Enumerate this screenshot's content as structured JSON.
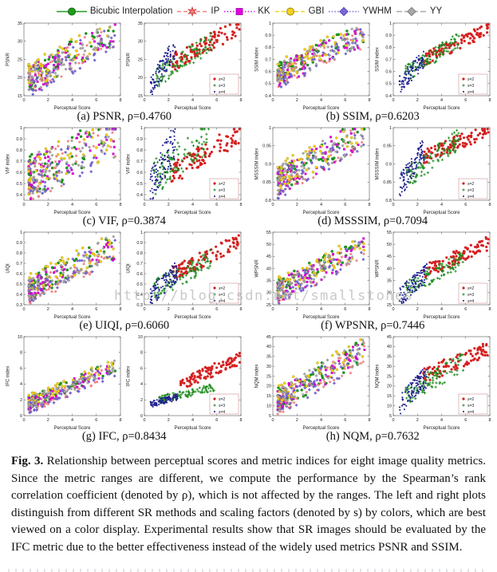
{
  "page": {
    "watermark": "http://blog.csdn.net/smallstones"
  },
  "legend": {
    "items": [
      {
        "name": "Bicubic Interpolation",
        "color": "#1e9c1e",
        "edge": "#0d6b0d",
        "marker": "circle",
        "line": "solid"
      },
      {
        "name": "IP",
        "color": "#f08080",
        "edge": "#d03030",
        "marker": "star",
        "line": "dashed"
      },
      {
        "name": "KK",
        "color": "#e000e0",
        "edge": "#a000a0",
        "marker": "square",
        "line": "dotted"
      },
      {
        "name": "GBI",
        "color": "#f2d022",
        "edge": "#a08800",
        "marker": "circle",
        "line": "dashed"
      },
      {
        "name": "YWHM",
        "color": "#7a6ad8",
        "edge": "#4838a8",
        "marker": "diamond",
        "line": "dotted"
      },
      {
        "name": "YY",
        "color": "#a8a8a8",
        "edge": "#707070",
        "marker": "diamond",
        "line": "dash"
      }
    ]
  },
  "scales": [
    {
      "label": "s=2",
      "color": "#d62020",
      "marker": "circle"
    },
    {
      "label": "s=3",
      "color": "#1e8c1e",
      "marker": "plus"
    },
    {
      "label": "s=4",
      "color": "#202090",
      "marker": "dot"
    }
  ],
  "method_offsets": [
    0.02,
    -0.03,
    0.0,
    0.05,
    -0.04,
    0.01
  ],
  "chart_data": [
    {
      "id": "a",
      "type": "scatter",
      "metric": "PSNR",
      "rho": 0.476,
      "caption": "(a) PSNR, ρ=0.4760",
      "xlabel": "Perceptual Score",
      "ylabel": "PSNR",
      "xlim": [
        0,
        8
      ],
      "xticks": [
        0,
        2,
        4,
        6,
        8
      ],
      "ylim": [
        15,
        35
      ],
      "yticks": [
        15,
        20,
        25,
        30,
        35
      ],
      "left": {
        "x": [
          0.4,
          7.6
        ],
        "f": [
          0.2,
          0.88
        ],
        "noise": 0.4,
        "skew": 1.7,
        "n": 55
      },
      "right": [
        {
          "label": "s=2",
          "x": [
            2.2,
            7.9
          ],
          "f": [
            0.45,
            0.95
          ],
          "noise": 0.25,
          "n": 100
        },
        {
          "label": "s=3",
          "x": [
            1.0,
            5.6
          ],
          "f": [
            0.25,
            0.75
          ],
          "noise": 0.28,
          "n": 100
        },
        {
          "label": "s=4",
          "x": [
            0.5,
            2.6
          ],
          "f": [
            0.12,
            0.68
          ],
          "noise": 0.3,
          "n": 100
        }
      ]
    },
    {
      "id": "b",
      "type": "scatter",
      "metric": "SSIM",
      "rho": 0.6203,
      "caption": "(b) SSIM, ρ=0.6203",
      "xlabel": "Perceptual Score",
      "ylabel": "SSIM index",
      "xlim": [
        0,
        8
      ],
      "xticks": [
        0,
        2,
        4,
        6,
        8
      ],
      "ylim": [
        0.4,
        1
      ],
      "yticks": [
        0.4,
        0.5,
        0.6,
        0.7,
        0.8,
        0.9,
        1
      ],
      "left": {
        "x": [
          0.4,
          7.6
        ],
        "f": [
          0.28,
          0.85
        ],
        "noise": 0.32,
        "skew": 1.7,
        "n": 55
      },
      "right": [
        {
          "label": "s=2",
          "x": [
            2.5,
            7.9
          ],
          "f": [
            0.5,
            0.92
          ],
          "noise": 0.18,
          "n": 100
        },
        {
          "label": "s=3",
          "x": [
            1.0,
            5.5
          ],
          "f": [
            0.3,
            0.78
          ],
          "noise": 0.22,
          "n": 100
        },
        {
          "label": "s=4",
          "x": [
            0.5,
            2.6
          ],
          "f": [
            0.15,
            0.52
          ],
          "noise": 0.25,
          "n": 100
        }
      ]
    },
    {
      "id": "c",
      "type": "scatter",
      "metric": "VIF",
      "rho": 0.3874,
      "caption": "(c) VIF, ρ=0.3874",
      "xlabel": "Perceptual Score",
      "ylabel": "VIF index",
      "xlim": [
        0,
        8
      ],
      "xticks": [
        0,
        2,
        4,
        6,
        8
      ],
      "ylim": [
        0.35,
        1
      ],
      "yticks": [
        0.4,
        0.5,
        0.6,
        0.7,
        0.8,
        0.9,
        1
      ],
      "left": {
        "x": [
          0.4,
          7.6
        ],
        "f": [
          0.3,
          0.88
        ],
        "noise": 0.6,
        "skew": 1.9,
        "n": 55
      },
      "right": [
        {
          "label": "s=2",
          "x": [
            2.2,
            7.9
          ],
          "f": [
            0.35,
            0.93
          ],
          "noise": 0.3,
          "n": 100
        },
        {
          "label": "s=3",
          "x": [
            0.8,
            5.4
          ],
          "f": [
            0.3,
            0.92
          ],
          "noise": 0.5,
          "n": 100
        },
        {
          "label": "s=4",
          "x": [
            0.5,
            2.6
          ],
          "f": [
            0.15,
            0.85
          ],
          "noise": 0.55,
          "n": 100
        }
      ]
    },
    {
      "id": "d",
      "type": "scatter",
      "metric": "MSSSIM",
      "rho": 0.7094,
      "caption": "(d) MSSSIM, ρ=0.7094",
      "xlabel": "Perceptual Score",
      "ylabel": "MSSSIM index",
      "xlim": [
        0,
        8
      ],
      "xticks": [
        0,
        2,
        4,
        6,
        8
      ],
      "ylim": [
        0.8,
        1
      ],
      "yticks": [
        0.8,
        0.85,
        0.9,
        0.95,
        1
      ],
      "left": {
        "x": [
          0.4,
          7.6
        ],
        "f": [
          0.25,
          0.95
        ],
        "noise": 0.4,
        "skew": 1.8,
        "n": 55
      },
      "right": [
        {
          "label": "s=2",
          "x": [
            2.5,
            7.9
          ],
          "f": [
            0.6,
            0.97
          ],
          "noise": 0.2,
          "n": 100
        },
        {
          "label": "s=3",
          "x": [
            1.0,
            5.5
          ],
          "f": [
            0.3,
            0.85
          ],
          "noise": 0.3,
          "n": 100
        },
        {
          "label": "s=4",
          "x": [
            0.5,
            2.6
          ],
          "f": [
            0.18,
            0.72
          ],
          "noise": 0.32,
          "n": 100
        }
      ]
    },
    {
      "id": "e",
      "type": "scatter",
      "metric": "UIQI",
      "rho": 0.606,
      "caption": "(e) UIQI, ρ=0.6060",
      "xlabel": "Perceptual Score",
      "ylabel": "UIQI",
      "xlim": [
        0,
        8
      ],
      "xticks": [
        0,
        2,
        4,
        6,
        8
      ],
      "ylim": [
        0.3,
        1
      ],
      "yticks": [
        0.3,
        0.4,
        0.5,
        0.6,
        0.7,
        0.8,
        0.9,
        1
      ],
      "left": {
        "x": [
          0.4,
          7.6
        ],
        "f": [
          0.2,
          0.8
        ],
        "noise": 0.35,
        "skew": 1.7,
        "n": 55
      },
      "right": [
        {
          "label": "s=2",
          "x": [
            2.3,
            7.9
          ],
          "f": [
            0.42,
            0.88
          ],
          "noise": 0.22,
          "n": 100
        },
        {
          "label": "s=3",
          "x": [
            0.8,
            5.5
          ],
          "f": [
            0.2,
            0.62
          ],
          "noise": 0.28,
          "n": 100
        },
        {
          "label": "s=4",
          "x": [
            0.5,
            2.8
          ],
          "f": [
            0.1,
            0.48
          ],
          "noise": 0.28,
          "n": 100
        }
      ]
    },
    {
      "id": "f",
      "type": "scatter",
      "metric": "WPSNR",
      "rho": 0.7446,
      "caption": "(f) WPSNR, ρ=0.7446",
      "xlabel": "Perceptual Score",
      "ylabel": "WPSNR",
      "xlim": [
        0,
        8
      ],
      "xticks": [
        0,
        2,
        4,
        6,
        8
      ],
      "ylim": [
        25,
        55
      ],
      "yticks": [
        25,
        30,
        35,
        40,
        45,
        50,
        55
      ],
      "left": {
        "x": [
          0.4,
          7.6
        ],
        "f": [
          0.18,
          0.8
        ],
        "noise": 0.3,
        "skew": 1.7,
        "n": 55
      },
      "right": [
        {
          "label": "s=2",
          "x": [
            2.5,
            7.9
          ],
          "f": [
            0.45,
            0.85
          ],
          "noise": 0.2,
          "n": 100
        },
        {
          "label": "s=3",
          "x": [
            1.0,
            5.8
          ],
          "f": [
            0.22,
            0.62
          ],
          "noise": 0.22,
          "n": 100
        },
        {
          "label": "s=4",
          "x": [
            0.5,
            2.8
          ],
          "f": [
            0.1,
            0.45
          ],
          "noise": 0.26,
          "n": 100
        }
      ]
    },
    {
      "id": "g",
      "type": "scatter",
      "metric": "IFC",
      "rho": 0.8434,
      "caption": "(g) IFC, ρ=0.8434",
      "xlabel": "Perceptual Score",
      "ylabel": "IFC index",
      "xlim": [
        0,
        8
      ],
      "xticks": [
        0,
        2,
        4,
        6,
        8
      ],
      "ylim": [
        0,
        10
      ],
      "yticks": [
        0,
        2,
        4,
        6,
        8,
        10
      ],
      "left": {
        "x": [
          0.4,
          7.6
        ],
        "f": [
          0.14,
          0.62
        ],
        "noise": 0.16,
        "skew": 1.8,
        "n": 55
      },
      "right": [
        {
          "label": "s=2",
          "x": [
            3.0,
            7.9
          ],
          "f": [
            0.4,
            0.72
          ],
          "noise": 0.16,
          "n": 100
        },
        {
          "label": "s=3",
          "x": [
            1.2,
            5.8
          ],
          "f": [
            0.2,
            0.36
          ],
          "noise": 0.1,
          "n": 100
        },
        {
          "label": "s=4",
          "x": [
            0.5,
            2.8
          ],
          "f": [
            0.14,
            0.24
          ],
          "noise": 0.08,
          "n": 100
        }
      ]
    },
    {
      "id": "h",
      "type": "scatter",
      "metric": "NQM",
      "rho": 0.7632,
      "caption": "(h) NQM, ρ=0.7632",
      "xlabel": "Perceptual Score",
      "ylabel": "NQM index",
      "xlim": [
        0,
        8
      ],
      "xticks": [
        0,
        2,
        4,
        6,
        8
      ],
      "ylim": [
        5,
        45
      ],
      "yticks": [
        5,
        10,
        15,
        20,
        25,
        30,
        35,
        40,
        45
      ],
      "left": {
        "x": [
          0.4,
          7.6
        ],
        "f": [
          0.18,
          0.82
        ],
        "noise": 0.3,
        "skew": 1.7,
        "n": 55
      },
      "right": [
        {
          "label": "s=2",
          "x": [
            2.5,
            7.9
          ],
          "f": [
            0.5,
            0.85
          ],
          "noise": 0.2,
          "n": 100
        },
        {
          "label": "s=3",
          "x": [
            1.0,
            5.8
          ],
          "f": [
            0.26,
            0.68
          ],
          "noise": 0.26,
          "n": 100
        },
        {
          "label": "s=4",
          "x": [
            0.5,
            2.8
          ],
          "f": [
            0.15,
            0.5
          ],
          "noise": 0.28,
          "n": 100
        }
      ]
    }
  ],
  "figure_caption": {
    "tag": "Fig. 3.",
    "text": " Relationship between perceptual scores and metric indices for eight image quality metrics. Since the metric ranges are different, we compute the performance by the Spearman’s rank correlation coefficient (denoted by ρ), which is not affected by the ranges. The left and right plots distinguish from different SR methods and scaling factors (denoted by s) by colors, which are best viewed on a color display. Experimental results show that SR images should be evaluated by the IFC metric due to the better effectiveness instead of the widely used metrics PSNR and SSIM."
  }
}
